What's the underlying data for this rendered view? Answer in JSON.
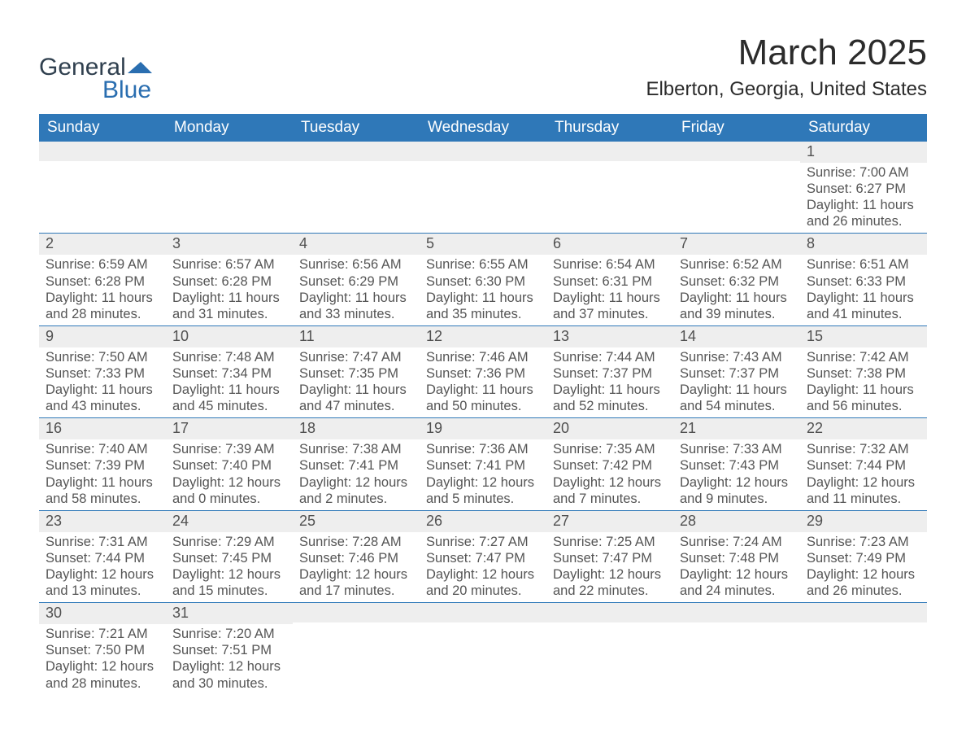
{
  "logo": {
    "text1": "General",
    "text2": "Blue",
    "color_primary": "#2a6eb0"
  },
  "title": "March 2025",
  "location": "Elberton, Georgia, United States",
  "header_bg": "#2f78b8",
  "daynum_bg": "#eeeeee",
  "text_color": "#555555",
  "day_names": [
    "Sunday",
    "Monday",
    "Tuesday",
    "Wednesday",
    "Thursday",
    "Friday",
    "Saturday"
  ],
  "weeks": [
    [
      null,
      null,
      null,
      null,
      null,
      null,
      {
        "n": "1",
        "sr": "7:00 AM",
        "ss": "6:27 PM",
        "dl1": "11 hours",
        "dl2": "and 26 minutes."
      }
    ],
    [
      {
        "n": "2",
        "sr": "6:59 AM",
        "ss": "6:28 PM",
        "dl1": "11 hours",
        "dl2": "and 28 minutes."
      },
      {
        "n": "3",
        "sr": "6:57 AM",
        "ss": "6:28 PM",
        "dl1": "11 hours",
        "dl2": "and 31 minutes."
      },
      {
        "n": "4",
        "sr": "6:56 AM",
        "ss": "6:29 PM",
        "dl1": "11 hours",
        "dl2": "and 33 minutes."
      },
      {
        "n": "5",
        "sr": "6:55 AM",
        "ss": "6:30 PM",
        "dl1": "11 hours",
        "dl2": "and 35 minutes."
      },
      {
        "n": "6",
        "sr": "6:54 AM",
        "ss": "6:31 PM",
        "dl1": "11 hours",
        "dl2": "and 37 minutes."
      },
      {
        "n": "7",
        "sr": "6:52 AM",
        "ss": "6:32 PM",
        "dl1": "11 hours",
        "dl2": "and 39 minutes."
      },
      {
        "n": "8",
        "sr": "6:51 AM",
        "ss": "6:33 PM",
        "dl1": "11 hours",
        "dl2": "and 41 minutes."
      }
    ],
    [
      {
        "n": "9",
        "sr": "7:50 AM",
        "ss": "7:33 PM",
        "dl1": "11 hours",
        "dl2": "and 43 minutes."
      },
      {
        "n": "10",
        "sr": "7:48 AM",
        "ss": "7:34 PM",
        "dl1": "11 hours",
        "dl2": "and 45 minutes."
      },
      {
        "n": "11",
        "sr": "7:47 AM",
        "ss": "7:35 PM",
        "dl1": "11 hours",
        "dl2": "and 47 minutes."
      },
      {
        "n": "12",
        "sr": "7:46 AM",
        "ss": "7:36 PM",
        "dl1": "11 hours",
        "dl2": "and 50 minutes."
      },
      {
        "n": "13",
        "sr": "7:44 AM",
        "ss": "7:37 PM",
        "dl1": "11 hours",
        "dl2": "and 52 minutes."
      },
      {
        "n": "14",
        "sr": "7:43 AM",
        "ss": "7:37 PM",
        "dl1": "11 hours",
        "dl2": "and 54 minutes."
      },
      {
        "n": "15",
        "sr": "7:42 AM",
        "ss": "7:38 PM",
        "dl1": "11 hours",
        "dl2": "and 56 minutes."
      }
    ],
    [
      {
        "n": "16",
        "sr": "7:40 AM",
        "ss": "7:39 PM",
        "dl1": "11 hours",
        "dl2": "and 58 minutes."
      },
      {
        "n": "17",
        "sr": "7:39 AM",
        "ss": "7:40 PM",
        "dl1": "12 hours",
        "dl2": "and 0 minutes."
      },
      {
        "n": "18",
        "sr": "7:38 AM",
        "ss": "7:41 PM",
        "dl1": "12 hours",
        "dl2": "and 2 minutes."
      },
      {
        "n": "19",
        "sr": "7:36 AM",
        "ss": "7:41 PM",
        "dl1": "12 hours",
        "dl2": "and 5 minutes."
      },
      {
        "n": "20",
        "sr": "7:35 AM",
        "ss": "7:42 PM",
        "dl1": "12 hours",
        "dl2": "and 7 minutes."
      },
      {
        "n": "21",
        "sr": "7:33 AM",
        "ss": "7:43 PM",
        "dl1": "12 hours",
        "dl2": "and 9 minutes."
      },
      {
        "n": "22",
        "sr": "7:32 AM",
        "ss": "7:44 PM",
        "dl1": "12 hours",
        "dl2": "and 11 minutes."
      }
    ],
    [
      {
        "n": "23",
        "sr": "7:31 AM",
        "ss": "7:44 PM",
        "dl1": "12 hours",
        "dl2": "and 13 minutes."
      },
      {
        "n": "24",
        "sr": "7:29 AM",
        "ss": "7:45 PM",
        "dl1": "12 hours",
        "dl2": "and 15 minutes."
      },
      {
        "n": "25",
        "sr": "7:28 AM",
        "ss": "7:46 PM",
        "dl1": "12 hours",
        "dl2": "and 17 minutes."
      },
      {
        "n": "26",
        "sr": "7:27 AM",
        "ss": "7:47 PM",
        "dl1": "12 hours",
        "dl2": "and 20 minutes."
      },
      {
        "n": "27",
        "sr": "7:25 AM",
        "ss": "7:47 PM",
        "dl1": "12 hours",
        "dl2": "and 22 minutes."
      },
      {
        "n": "28",
        "sr": "7:24 AM",
        "ss": "7:48 PM",
        "dl1": "12 hours",
        "dl2": "and 24 minutes."
      },
      {
        "n": "29",
        "sr": "7:23 AM",
        "ss": "7:49 PM",
        "dl1": "12 hours",
        "dl2": "and 26 minutes."
      }
    ],
    [
      {
        "n": "30",
        "sr": "7:21 AM",
        "ss": "7:50 PM",
        "dl1": "12 hours",
        "dl2": "and 28 minutes."
      },
      {
        "n": "31",
        "sr": "7:20 AM",
        "ss": "7:51 PM",
        "dl1": "12 hours",
        "dl2": "and 30 minutes."
      },
      null,
      null,
      null,
      null,
      null
    ]
  ],
  "labels": {
    "sunrise": "Sunrise: ",
    "sunset": "Sunset: ",
    "daylight": "Daylight: "
  }
}
